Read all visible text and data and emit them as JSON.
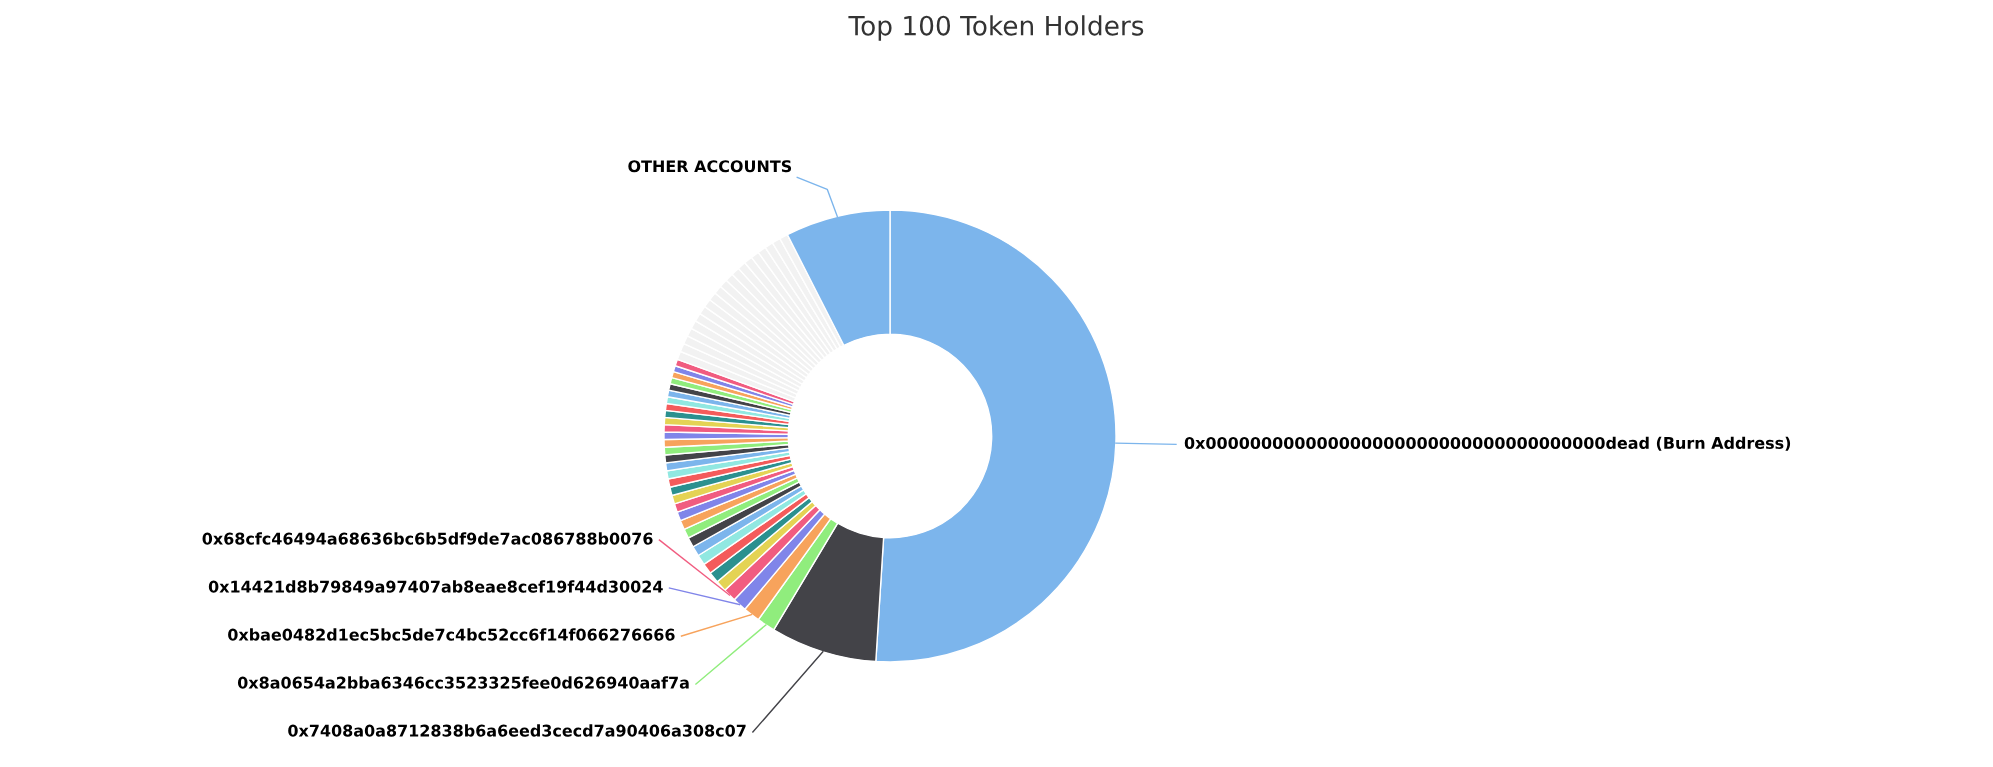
{
  "chart_data": {
    "type": "donut",
    "title": "Top 100 Token Holders",
    "categories": [
      "0x000000000000000000000000000000000000dead (Burn Address)",
      "0x7408a0a8712838b6a6eed3cecd7a90406a308c07",
      "0x8a0654a2bba6346cc3523325fee0d626940aaf7a",
      "0xbae0482d1ec5bc5de7c4bc52cc6f14f066276666",
      "0x14421d8b79849a97407ab8eae8cef19f44d30024",
      "0x68cfc46494a68636bc6b5df9de7ac086788b0076",
      null,
      null,
      null,
      null,
      null,
      null,
      null,
      null,
      null,
      null,
      null,
      null,
      null,
      null,
      null,
      null,
      null,
      null,
      null,
      null,
      null,
      null,
      null,
      null,
      null,
      null,
      null,
      null,
      null,
      null,
      null,
      null,
      null,
      null,
      null,
      null,
      null,
      null,
      null,
      null,
      null,
      null,
      null,
      null,
      null,
      null,
      null,
      null,
      null,
      null,
      "OTHER ACCOUNTS"
    ],
    "values": [
      51,
      7.6,
      1.3,
      1.2,
      1.0,
      0.95,
      0.8,
      0.78,
      0.76,
      0.74,
      0.72,
      0.7,
      0.68,
      0.66,
      0.64,
      0.62,
      0.61,
      0.6,
      0.59,
      0.58,
      0.57,
      0.56,
      0.55,
      0.54,
      0.53,
      0.52,
      0.51,
      0.5,
      0.49,
      0.48,
      0.47,
      0.46,
      0.45,
      0.44,
      0.43,
      0.47,
      0.6,
      0.6,
      0.6,
      0.6,
      0.6,
      0.6,
      0.6,
      0.6,
      0.6,
      0.6,
      0.6,
      0.6,
      0.6,
      0.6,
      0.6,
      0.6,
      0.6,
      0.6,
      0.6,
      0.6,
      7.5
    ],
    "colors": [
      "#7cb5ec",
      "#434348",
      "#90ed7d",
      "#f7a35c",
      "#8085e9",
      "#f15c80",
      "#e4d354",
      "#2b908f",
      "#f45b5b",
      "#91e8e1",
      "#7cb5ec",
      "#434348",
      "#90ed7d",
      "#f7a35c",
      "#8085e9",
      "#f15c80",
      "#e4d354",
      "#2b908f",
      "#f45b5b",
      "#91e8e1",
      "#7cb5ec",
      "#434348",
      "#90ed7d",
      "#f7a35c",
      "#8085e9",
      "#f15c80",
      "#e4d354",
      "#2b908f",
      "#f45b5b",
      "#91e8e1",
      "#7cb5ec",
      "#434348",
      "#90ed7d",
      "#f7a35c",
      "#8085e9",
      "#f15c80",
      "#f2f2f2",
      "#f2f2f2",
      "#f2f2f2",
      "#f2f2f2",
      "#f2f2f2",
      "#f2f2f2",
      "#f2f2f2",
      "#f2f2f2",
      "#f2f2f2",
      "#f2f2f2",
      "#f2f2f2",
      "#f2f2f2",
      "#f2f2f2",
      "#f2f2f2",
      "#f2f2f2",
      "#f2f2f2",
      "#f2f2f2",
      "#f2f2f2",
      "#f2f2f2",
      "#f2f2f2",
      "#7cb5ec"
    ]
  }
}
